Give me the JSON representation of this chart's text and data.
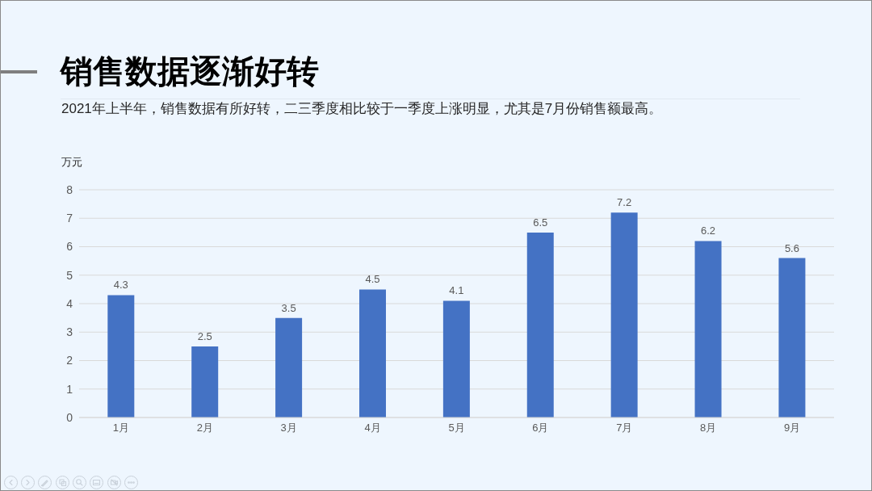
{
  "chart_data": {
    "type": "bar",
    "title": "销售数据逐渐好转",
    "subtitle": "2021年上半年，销售数据有所好转，二三季度相比较于一季度上涨明显，尤其是7月份销售额最高。",
    "ylabel": "万元",
    "categories": [
      "1月",
      "2月",
      "3月",
      "4月",
      "5月",
      "6月",
      "7月",
      "8月",
      "9月"
    ],
    "values": [
      4.3,
      2.5,
      3.5,
      4.5,
      4.1,
      6.5,
      7.2,
      6.2,
      5.6
    ],
    "color": "#4472c4",
    "ylim": [
      0,
      8
    ],
    "yticks": [
      0,
      1,
      2,
      3,
      4,
      5,
      6,
      7,
      8
    ],
    "grid": "y",
    "data_labels": true
  }
}
